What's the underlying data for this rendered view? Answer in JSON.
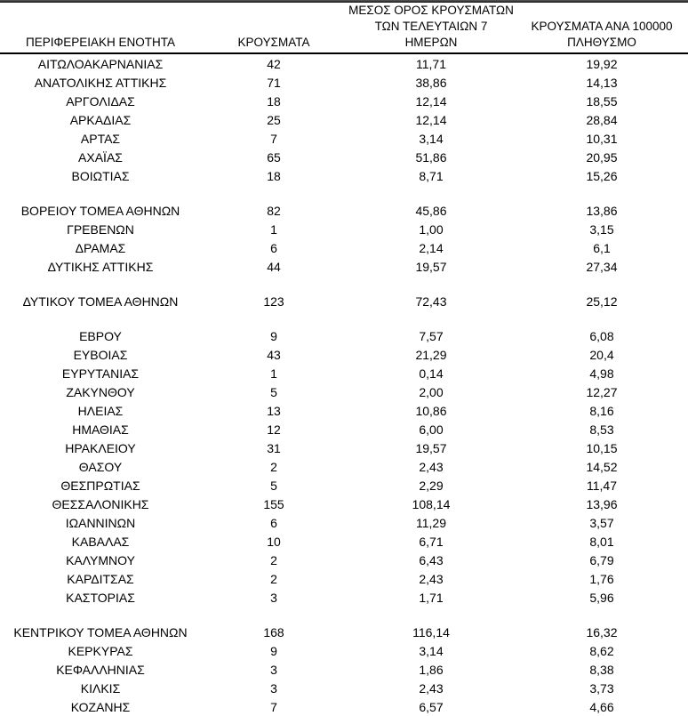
{
  "page": {
    "background_color": "#ffffff",
    "text_color": "#000000",
    "top_rule_color": "#333333",
    "header_rule_color": "#000000"
  },
  "table": {
    "columns": [
      {
        "id": "region",
        "label": "ΠΕΡΙΦΕΡΕΙΑΚΗ ΕΝΟΤΗΤΑ"
      },
      {
        "id": "cases",
        "label": "ΚΡΟΥΣΜΑΤΑ"
      },
      {
        "id": "avg7",
        "label": "ΜΕΣΟΣ ΟΡΟΣ ΚΡΟΥΣΜΑΤΩΝ\nΤΩΝ ΤΕΛΕΥΤΑΙΩΝ 7\nΗΜΕΡΩΝ"
      },
      {
        "id": "per100k",
        "label": "ΚΡΟΥΣΜΑΤΑ ΑΝΑ 100000\nΠΛΗΘΥΣΜΟ"
      }
    ],
    "sections": [
      {
        "rows": [
          [
            "ΑΙΤΩΛΟΑΚΑΡΝΑΝΙΑΣ",
            "42",
            "11,71",
            "19,92"
          ],
          [
            "ΑΝΑΤΟΛΙΚΗΣ ΑΤΤΙΚΗΣ",
            "71",
            "38,86",
            "14,13"
          ],
          [
            "ΑΡΓΟΛΙΔΑΣ",
            "18",
            "12,14",
            "18,55"
          ],
          [
            "ΑΡΚΑΔΙΑΣ",
            "25",
            "12,14",
            "28,84"
          ],
          [
            "ΑΡΤΑΣ",
            "7",
            "3,14",
            "10,31"
          ],
          [
            "ΑΧΑΪΑΣ",
            "65",
            "51,86",
            "20,95"
          ],
          [
            "ΒΟΙΩΤΙΑΣ",
            "18",
            "8,71",
            "15,26"
          ]
        ]
      },
      {
        "rows": [
          [
            "ΒΟΡΕΙΟΥ ΤΟΜΕΑ ΑΘΗΝΩΝ",
            "82",
            "45,86",
            "13,86"
          ],
          [
            "ΓΡΕΒΕΝΩΝ",
            "1",
            "1,00",
            "3,15"
          ],
          [
            "ΔΡΑΜΑΣ",
            "6",
            "2,14",
            "6,1"
          ],
          [
            "ΔΥΤΙΚΗΣ ΑΤΤΙΚΗΣ",
            "44",
            "19,57",
            "27,34"
          ]
        ]
      },
      {
        "rows": [
          [
            "ΔΥΤΙΚΟΥ ΤΟΜΕΑ ΑΘΗΝΩΝ",
            "123",
            "72,43",
            "25,12"
          ]
        ]
      },
      {
        "rows": [
          [
            "ΕΒΡΟΥ",
            "9",
            "7,57",
            "6,08"
          ],
          [
            "ΕΥΒΟΙΑΣ",
            "43",
            "21,29",
            "20,4"
          ],
          [
            "ΕΥΡΥΤΑΝΙΑΣ",
            "1",
            "0,14",
            "4,98"
          ],
          [
            "ΖΑΚΥΝΘΟΥ",
            "5",
            "2,00",
            "12,27"
          ],
          [
            "ΗΛΕΙΑΣ",
            "13",
            "10,86",
            "8,16"
          ],
          [
            "ΗΜΑΘΙΑΣ",
            "12",
            "6,00",
            "8,53"
          ],
          [
            "ΗΡΑΚΛΕΙΟΥ",
            "31",
            "19,57",
            "10,15"
          ],
          [
            "ΘΑΣΟΥ",
            "2",
            "2,43",
            "14,52"
          ],
          [
            "ΘΕΣΠΡΩΤΙΑΣ",
            "5",
            "2,29",
            "11,47"
          ],
          [
            "ΘΕΣΣΑΛΟΝΙΚΗΣ",
            "155",
            "108,14",
            "13,96"
          ],
          [
            "ΙΩΑΝΝΙΝΩΝ",
            "6",
            "11,29",
            "3,57"
          ],
          [
            "ΚΑΒΑΛΑΣ",
            "10",
            "6,71",
            "8,01"
          ],
          [
            "ΚΑΛΥΜΝΟΥ",
            "2",
            "6,43",
            "6,79"
          ],
          [
            "ΚΑΡΔΙΤΣΑΣ",
            "2",
            "2,43",
            "1,76"
          ],
          [
            "ΚΑΣΤΟΡΙΑΣ",
            "3",
            "1,71",
            "5,96"
          ]
        ]
      },
      {
        "rows": [
          [
            "ΚΕΝΤΡΙΚΟΥ ΤΟΜΕΑ ΑΘΗΝΩΝ",
            "168",
            "116,14",
            "16,32"
          ],
          [
            "ΚΕΡΚΥΡΑΣ",
            "9",
            "3,14",
            "8,62"
          ],
          [
            "ΚΕΦΑΛΛΗΝΙΑΣ",
            "3",
            "1,86",
            "8,38"
          ],
          [
            "ΚΙΛΚΙΣ",
            "3",
            "2,43",
            "3,73"
          ],
          [
            "ΚΟΖΑΝΗΣ",
            "7",
            "6,57",
            "4,66"
          ]
        ]
      }
    ]
  },
  "chart_data": {
    "type": "table",
    "columns": [
      "ΠΕΡΙΦΕΡΕΙΑΚΗ ΕΝΟΤΗΤΑ",
      "ΚΡΟΥΣΜΑΤΑ",
      "ΜΕΣΟΣ ΟΡΟΣ ΚΡΟΥΣΜΑΤΩΝ ΤΩΝ ΤΕΛΕΥΤΑΙΩΝ 7 ΗΜΕΡΩΝ",
      "ΚΡΟΥΣΜΑΤΑ ΑΝΑ 100000 ΠΛΗΘΥΣΜΟ"
    ],
    "rows": [
      [
        "ΑΙΤΩΛΟΑΚΑΡΝΑΝΙΑΣ",
        42,
        11.71,
        19.92
      ],
      [
        "ΑΝΑΤΟΛΙΚΗΣ ΑΤΤΙΚΗΣ",
        71,
        38.86,
        14.13
      ],
      [
        "ΑΡΓΟΛΙΔΑΣ",
        18,
        12.14,
        18.55
      ],
      [
        "ΑΡΚΑΔΙΑΣ",
        25,
        12.14,
        28.84
      ],
      [
        "ΑΡΤΑΣ",
        7,
        3.14,
        10.31
      ],
      [
        "ΑΧΑΪΑΣ",
        65,
        51.86,
        20.95
      ],
      [
        "ΒΟΙΩΤΙΑΣ",
        18,
        8.71,
        15.26
      ],
      [
        "ΒΟΡΕΙΟΥ ΤΟΜΕΑ ΑΘΗΝΩΝ",
        82,
        45.86,
        13.86
      ],
      [
        "ΓΡΕΒΕΝΩΝ",
        1,
        1.0,
        3.15
      ],
      [
        "ΔΡΑΜΑΣ",
        6,
        2.14,
        6.1
      ],
      [
        "ΔΥΤΙΚΗΣ ΑΤΤΙΚΗΣ",
        44,
        19.57,
        27.34
      ],
      [
        "ΔΥΤΙΚΟΥ ΤΟΜΕΑ ΑΘΗΝΩΝ",
        123,
        72.43,
        25.12
      ],
      [
        "ΕΒΡΟΥ",
        9,
        7.57,
        6.08
      ],
      [
        "ΕΥΒΟΙΑΣ",
        43,
        21.29,
        20.4
      ],
      [
        "ΕΥΡΥΤΑΝΙΑΣ",
        1,
        0.14,
        4.98
      ],
      [
        "ΖΑΚΥΝΘΟΥ",
        5,
        2.0,
        12.27
      ],
      [
        "ΗΛΕΙΑΣ",
        13,
        10.86,
        8.16
      ],
      [
        "ΗΜΑΘΙΑΣ",
        12,
        6.0,
        8.53
      ],
      [
        "ΗΡΑΚΛΕΙΟΥ",
        31,
        19.57,
        10.15
      ],
      [
        "ΘΑΣΟΥ",
        2,
        2.43,
        14.52
      ],
      [
        "ΘΕΣΠΡΩΤΙΑΣ",
        5,
        2.29,
        11.47
      ],
      [
        "ΘΕΣΣΑΛΟΝΙΚΗΣ",
        155,
        108.14,
        13.96
      ],
      [
        "ΙΩΑΝΝΙΝΩΝ",
        6,
        11.29,
        3.57
      ],
      [
        "ΚΑΒΑΛΑΣ",
        10,
        6.71,
        8.01
      ],
      [
        "ΚΑΛΥΜΝΟΥ",
        2,
        6.43,
        6.79
      ],
      [
        "ΚΑΡΔΙΤΣΑΣ",
        2,
        2.43,
        1.76
      ],
      [
        "ΚΑΣΤΟΡΙΑΣ",
        3,
        1.71,
        5.96
      ],
      [
        "ΚΕΝΤΡΙΚΟΥ ΤΟΜΕΑ ΑΘΗΝΩΝ",
        168,
        116.14,
        16.32
      ],
      [
        "ΚΕΡΚΥΡΑΣ",
        9,
        3.14,
        8.62
      ],
      [
        "ΚΕΦΑΛΛΗΝΙΑΣ",
        3,
        1.86,
        8.38
      ],
      [
        "ΚΙΛΚΙΣ",
        3,
        2.43,
        3.73
      ],
      [
        "ΚΟΖΑΝΗΣ",
        7,
        6.57,
        4.66
      ]
    ]
  }
}
